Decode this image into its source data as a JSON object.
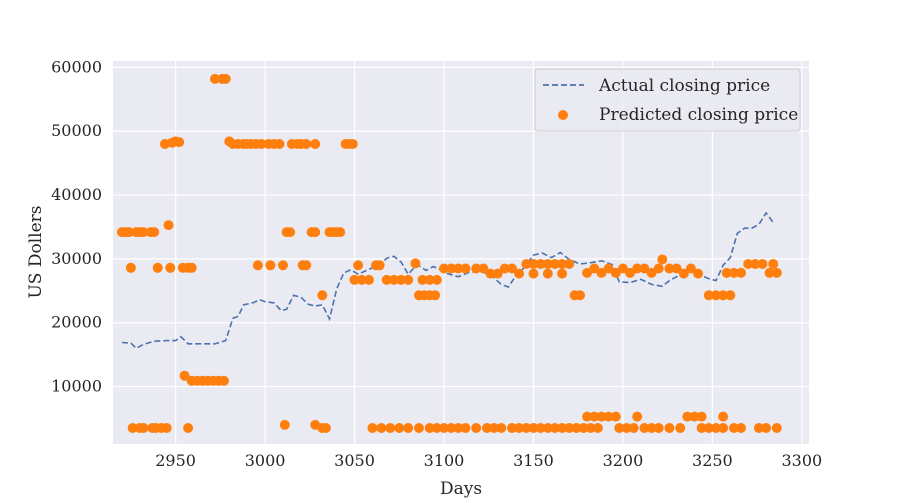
{
  "chart_data": {
    "type": "line+scatter",
    "xlabel": "Days",
    "ylabel": "US Dollers",
    "xlim": [
      2915,
      3304
    ],
    "ylim": [
      1000,
      61000
    ],
    "x_ticks": [
      2950,
      3000,
      3050,
      3100,
      3150,
      3200,
      3250,
      3300
    ],
    "y_ticks": [
      10000,
      20000,
      30000,
      40000,
      50000,
      60000
    ],
    "x_tick_labels": [
      "2950",
      "3000",
      "3050",
      "3100",
      "3150",
      "3200",
      "3250",
      "3300"
    ],
    "y_tick_labels": [
      "10000",
      "20000",
      "30000",
      "40000",
      "50000",
      "60000"
    ],
    "grid": true,
    "legend_position": "top-right",
    "colors": {
      "actual": "#4c72b0",
      "predicted": "#ff7f0e",
      "plot_bg": "#eaeaf2",
      "grid": "#ffffff"
    },
    "series": [
      {
        "name": "Actual closing price",
        "kind": "line",
        "style": "dashed",
        "points": [
          [
            2920,
            16900
          ],
          [
            2925,
            16800
          ],
          [
            2928,
            16000
          ],
          [
            2932,
            16600
          ],
          [
            2938,
            17100
          ],
          [
            2945,
            17200
          ],
          [
            2950,
            17200
          ],
          [
            2953,
            17800
          ],
          [
            2957,
            16700
          ],
          [
            2965,
            16700
          ],
          [
            2972,
            16700
          ],
          [
            2978,
            17200
          ],
          [
            2982,
            20700
          ],
          [
            2985,
            21000
          ],
          [
            2988,
            22800
          ],
          [
            2993,
            23100
          ],
          [
            2997,
            23600
          ],
          [
            3000,
            23300
          ],
          [
            3005,
            23100
          ],
          [
            3009,
            21900
          ],
          [
            3012,
            22100
          ],
          [
            3016,
            24300
          ],
          [
            3020,
            24000
          ],
          [
            3024,
            22900
          ],
          [
            3028,
            22600
          ],
          [
            3032,
            22800
          ],
          [
            3036,
            20600
          ],
          [
            3040,
            25300
          ],
          [
            3044,
            27800
          ],
          [
            3048,
            28300
          ],
          [
            3052,
            27600
          ],
          [
            3056,
            28100
          ],
          [
            3060,
            28600
          ],
          [
            3064,
            29000
          ],
          [
            3068,
            30100
          ],
          [
            3072,
            30400
          ],
          [
            3076,
            29500
          ],
          [
            3080,
            27600
          ],
          [
            3085,
            29100
          ],
          [
            3090,
            28200
          ],
          [
            3094,
            28800
          ],
          [
            3098,
            28300
          ],
          [
            3102,
            27700
          ],
          [
            3108,
            27200
          ],
          [
            3114,
            27900
          ],
          [
            3120,
            28100
          ],
          [
            3126,
            27500
          ],
          [
            3132,
            26000
          ],
          [
            3136,
            25600
          ],
          [
            3140,
            27300
          ],
          [
            3145,
            28700
          ],
          [
            3150,
            30600
          ],
          [
            3155,
            30900
          ],
          [
            3160,
            30200
          ],
          [
            3165,
            31000
          ],
          [
            3170,
            29900
          ],
          [
            3176,
            29200
          ],
          [
            3182,
            29400
          ],
          [
            3188,
            29700
          ],
          [
            3194,
            29100
          ],
          [
            3198,
            26400
          ],
          [
            3204,
            26300
          ],
          [
            3210,
            26800
          ],
          [
            3216,
            26000
          ],
          [
            3222,
            25700
          ],
          [
            3226,
            26600
          ],
          [
            3232,
            27500
          ],
          [
            3236,
            28300
          ],
          [
            3240,
            27900
          ],
          [
            3244,
            27400
          ],
          [
            3248,
            26900
          ],
          [
            3252,
            26600
          ],
          [
            3256,
            29000
          ],
          [
            3260,
            30200
          ],
          [
            3264,
            34000
          ],
          [
            3268,
            34800
          ],
          [
            3272,
            34800
          ],
          [
            3276,
            35400
          ],
          [
            3280,
            37200
          ],
          [
            3284,
            35700
          ]
        ]
      },
      {
        "name": "Predicted closing price",
        "kind": "scatter",
        "points": [
          [
            2920,
            34200
          ],
          [
            2922,
            34200
          ],
          [
            2924,
            34200
          ],
          [
            2928,
            34200
          ],
          [
            2930,
            34200
          ],
          [
            2932,
            34200
          ],
          [
            2936,
            34200
          ],
          [
            2938,
            34200
          ],
          [
            2925,
            28600
          ],
          [
            2940,
            28600
          ],
          [
            2947,
            28600
          ],
          [
            2954,
            28600
          ],
          [
            2957,
            28600
          ],
          [
            2959,
            28600
          ],
          [
            2944,
            48000
          ],
          [
            2948,
            48200
          ],
          [
            2950,
            48400
          ],
          [
            2952,
            48300
          ],
          [
            2946,
            35300
          ],
          [
            2926,
            3500
          ],
          [
            2930,
            3500
          ],
          [
            2932,
            3500
          ],
          [
            2937,
            3500
          ],
          [
            2939,
            3500
          ],
          [
            2942,
            3500
          ],
          [
            2945,
            3500
          ],
          [
            2957,
            3500
          ],
          [
            2955,
            11700
          ],
          [
            2959,
            10900
          ],
          [
            2962,
            10900
          ],
          [
            2965,
            10900
          ],
          [
            2968,
            10900
          ],
          [
            2971,
            10900
          ],
          [
            2974,
            10900
          ],
          [
            2977,
            10900
          ],
          [
            2972,
            58200
          ],
          [
            2976,
            58200
          ],
          [
            2978,
            58200
          ],
          [
            2980,
            48400
          ],
          [
            2982,
            48000
          ],
          [
            2985,
            48000
          ],
          [
            2988,
            48000
          ],
          [
            2990,
            48000
          ],
          [
            2992,
            48000
          ],
          [
            2995,
            48000
          ],
          [
            2998,
            48000
          ],
          [
            3002,
            48000
          ],
          [
            3005,
            48000
          ],
          [
            3008,
            48000
          ],
          [
            3015,
            48000
          ],
          [
            3018,
            48000
          ],
          [
            3020,
            48000
          ],
          [
            3023,
            48000
          ],
          [
            3028,
            48000
          ],
          [
            2996,
            29000
          ],
          [
            3003,
            29000
          ],
          [
            3010,
            29000
          ],
          [
            3021,
            29000
          ],
          [
            3023,
            29000
          ],
          [
            3012,
            34200
          ],
          [
            3014,
            34200
          ],
          [
            3011,
            4000
          ],
          [
            3028,
            4000
          ],
          [
            3032,
            3500
          ],
          [
            3034,
            3500
          ],
          [
            3026,
            34200
          ],
          [
            3028,
            34200
          ],
          [
            3032,
            24300
          ],
          [
            3036,
            34200
          ],
          [
            3038,
            34200
          ],
          [
            3040,
            34200
          ],
          [
            3042,
            34200
          ],
          [
            3045,
            48000
          ],
          [
            3047,
            48000
          ],
          [
            3049,
            48000
          ],
          [
            3050,
            26700
          ],
          [
            3052,
            29000
          ],
          [
            3054,
            26700
          ],
          [
            3058,
            26700
          ],
          [
            3062,
            29000
          ],
          [
            3064,
            29000
          ],
          [
            3068,
            26700
          ],
          [
            3072,
            26700
          ],
          [
            3076,
            26700
          ],
          [
            3080,
            26700
          ],
          [
            3084,
            29300
          ],
          [
            3088,
            26700
          ],
          [
            3092,
            26700
          ],
          [
            3096,
            26700
          ],
          [
            3086,
            24300
          ],
          [
            3089,
            24300
          ],
          [
            3092,
            24300
          ],
          [
            3095,
            24300
          ],
          [
            3060,
            3500
          ],
          [
            3065,
            3500
          ],
          [
            3070,
            3500
          ],
          [
            3075,
            3500
          ],
          [
            3080,
            3500
          ],
          [
            3086,
            3500
          ],
          [
            3092,
            3500
          ],
          [
            3096,
            3500
          ],
          [
            3100,
            3500
          ],
          [
            3104,
            3500
          ],
          [
            3108,
            3500
          ],
          [
            3112,
            3500
          ],
          [
            3118,
            3500
          ],
          [
            3124,
            3500
          ],
          [
            3128,
            3500
          ],
          [
            3132,
            3500
          ],
          [
            3100,
            28500
          ],
          [
            3104,
            28500
          ],
          [
            3108,
            28500
          ],
          [
            3112,
            28500
          ],
          [
            3118,
            28500
          ],
          [
            3122,
            28500
          ],
          [
            3126,
            27700
          ],
          [
            3130,
            27700
          ],
          [
            3134,
            28500
          ],
          [
            3138,
            28500
          ],
          [
            3142,
            27700
          ],
          [
            3146,
            29200
          ],
          [
            3150,
            29200
          ],
          [
            3154,
            29200
          ],
          [
            3158,
            29200
          ],
          [
            3162,
            29200
          ],
          [
            3166,
            29200
          ],
          [
            3170,
            29200
          ],
          [
            3150,
            27700
          ],
          [
            3158,
            27700
          ],
          [
            3166,
            27700
          ],
          [
            3173,
            24300
          ],
          [
            3176,
            24300
          ],
          [
            3180,
            27800
          ],
          [
            3184,
            28500
          ],
          [
            3188,
            27800
          ],
          [
            3192,
            28500
          ],
          [
            3196,
            27800
          ],
          [
            3200,
            28500
          ],
          [
            3204,
            27800
          ],
          [
            3208,
            28500
          ],
          [
            3212,
            28500
          ],
          [
            3216,
            27800
          ],
          [
            3220,
            28500
          ],
          [
            3222,
            29900
          ],
          [
            3226,
            28500
          ],
          [
            3230,
            28500
          ],
          [
            3234,
            27700
          ],
          [
            3238,
            28500
          ],
          [
            3242,
            27700
          ],
          [
            3138,
            3500
          ],
          [
            3142,
            3500
          ],
          [
            3146,
            3500
          ],
          [
            3150,
            3500
          ],
          [
            3154,
            3500
          ],
          [
            3158,
            3500
          ],
          [
            3162,
            3500
          ],
          [
            3166,
            3500
          ],
          [
            3170,
            3500
          ],
          [
            3174,
            3500
          ],
          [
            3178,
            3500
          ],
          [
            3182,
            3500
          ],
          [
            3186,
            3500
          ],
          [
            3180,
            5300
          ],
          [
            3184,
            5300
          ],
          [
            3188,
            5300
          ],
          [
            3192,
            5300
          ],
          [
            3196,
            5300
          ],
          [
            3208,
            5300
          ],
          [
            3198,
            3500
          ],
          [
            3202,
            3500
          ],
          [
            3206,
            3500
          ],
          [
            3212,
            3500
          ],
          [
            3216,
            3500
          ],
          [
            3220,
            3500
          ],
          [
            3226,
            3500
          ],
          [
            3232,
            3500
          ],
          [
            3236,
            5300
          ],
          [
            3240,
            5300
          ],
          [
            3244,
            5300
          ],
          [
            3256,
            5300
          ],
          [
            3244,
            3500
          ],
          [
            3248,
            3500
          ],
          [
            3252,
            3500
          ],
          [
            3256,
            3500
          ],
          [
            3262,
            3500
          ],
          [
            3266,
            3500
          ],
          [
            3276,
            3500
          ],
          [
            3280,
            3500
          ],
          [
            3286,
            3500
          ],
          [
            3248,
            24300
          ],
          [
            3252,
            24300
          ],
          [
            3256,
            24300
          ],
          [
            3260,
            24300
          ],
          [
            3258,
            27800
          ],
          [
            3262,
            27800
          ],
          [
            3266,
            27800
          ],
          [
            3270,
            29200
          ],
          [
            3274,
            29200
          ],
          [
            3278,
            29200
          ],
          [
            3282,
            27800
          ],
          [
            3284,
            29200
          ],
          [
            3286,
            27800
          ]
        ]
      }
    ]
  }
}
